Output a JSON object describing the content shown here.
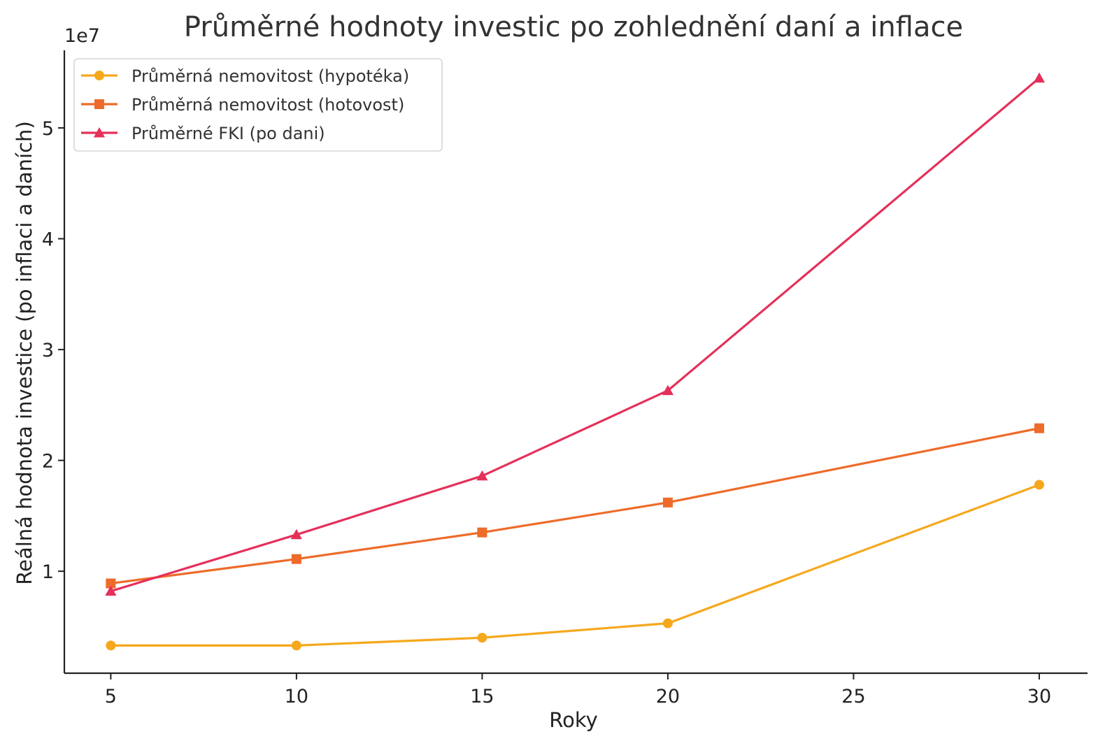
{
  "chart_data": {
    "type": "line",
    "title": "Průměrné hodnoty investic po zohlednění daní a inflace",
    "xlabel": "Roky",
    "ylabel": "Reálná hodnota investice (po inflaci a daních)",
    "y_offset_label": "1e7",
    "x": [
      5,
      10,
      15,
      20,
      30
    ],
    "xlim": [
      3.75,
      31.3
    ],
    "ylim": [
      0.08,
      5.7
    ],
    "x_ticks": [
      5,
      10,
      15,
      20,
      25,
      30
    ],
    "x_tick_labels": [
      "5",
      "10",
      "15",
      "20",
      "25",
      "30"
    ],
    "y_ticks": [
      1,
      2,
      3,
      4,
      5
    ],
    "y_tick_labels": [
      "1",
      "2",
      "3",
      "4",
      "5"
    ],
    "y_scale_note": "values in units of 1e7",
    "grid": false,
    "legend_position": "top-left",
    "series": [
      {
        "name": "Průměrná nemovitost (hypotéka)",
        "values": [
          0.33,
          0.33,
          0.4,
          0.53,
          1.78
        ],
        "color": "#F5A81C",
        "marker": "circle"
      },
      {
        "name": "Průměrná nemovitost (hotovost)",
        "values": [
          0.89,
          1.11,
          1.35,
          1.62,
          2.29
        ],
        "color": "#EE6B2A",
        "marker": "square"
      },
      {
        "name": "Průměrné FKI (po dani)",
        "values": [
          0.82,
          1.33,
          1.86,
          2.63,
          5.45
        ],
        "color": "#E5305A",
        "marker": "triangle"
      }
    ]
  }
}
